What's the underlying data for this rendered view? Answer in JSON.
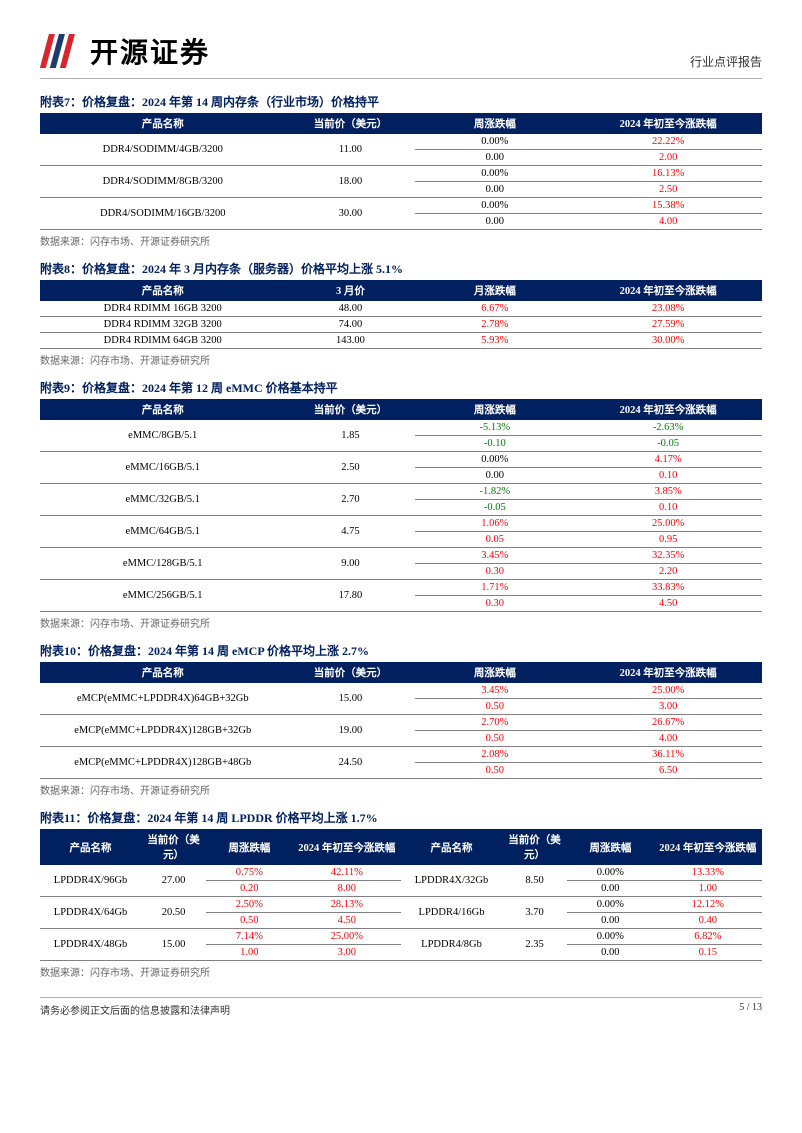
{
  "header": {
    "company": "开源证券",
    "report_type": "行业点评报告"
  },
  "tables": {
    "t7": {
      "title": "附表7：价格复盘：2024 年第 14 周内存条（行业市场）价格持平",
      "headers": [
        "产品名称",
        "当前价（美元）",
        "周涨跌幅",
        "2024 年初至今涨跌幅"
      ],
      "rows": [
        {
          "p": "DDR4/SODIMM/4GB/3200",
          "price": "11.00",
          "w1": "0.00%",
          "w1c": "black",
          "w2": "0.00",
          "w2c": "black",
          "y1": "22.22%",
          "y1c": "red",
          "y2": "2.00",
          "y2c": "red"
        },
        {
          "p": "DDR4/SODIMM/8GB/3200",
          "price": "18.00",
          "w1": "0.00%",
          "w1c": "black",
          "w2": "0.00",
          "w2c": "black",
          "y1": "16.13%",
          "y1c": "red",
          "y2": "2.50",
          "y2c": "red"
        },
        {
          "p": "DDR4/SODIMM/16GB/3200",
          "price": "30.00",
          "w1": "0.00%",
          "w1c": "black",
          "w2": "0.00",
          "w2c": "black",
          "y1": "15.38%",
          "y1c": "red",
          "y2": "4.00",
          "y2c": "red"
        }
      ]
    },
    "t8": {
      "title": "附表8：价格复盘：2024 年 3 月内存条（服务器）价格平均上涨 5.1%",
      "headers": [
        "产品名称",
        "3 月价",
        "月涨跌幅",
        "2024 年初至今涨跌幅"
      ],
      "rows": [
        {
          "p": "DDR4 RDIMM 16GB 3200",
          "price": "48.00",
          "m": "6.67%",
          "mc": "red",
          "y": "23.08%",
          "yc": "red"
        },
        {
          "p": "DDR4 RDIMM 32GB 3200",
          "price": "74.00",
          "m": "2.78%",
          "mc": "red",
          "y": "27.59%",
          "yc": "red"
        },
        {
          "p": "DDR4 RDIMM 64GB 3200",
          "price": "143.00",
          "m": "5.93%",
          "mc": "red",
          "y": "30.00%",
          "yc": "red"
        }
      ]
    },
    "t9": {
      "title": "附表9：价格复盘：2024 年第 12 周 eMMC 价格基本持平",
      "headers": [
        "产品名称",
        "当前价（美元）",
        "周涨跌幅",
        "2024 年初至今涨跌幅"
      ],
      "rows": [
        {
          "p": "eMMC/8GB/5.1",
          "price": "1.85",
          "w1": "-5.13%",
          "w1c": "green",
          "w2": "-0.10",
          "w2c": "green",
          "y1": "-2.63%",
          "y1c": "green",
          "y2": "-0.05",
          "y2c": "green"
        },
        {
          "p": "eMMC/16GB/5.1",
          "price": "2.50",
          "w1": "0.00%",
          "w1c": "black",
          "w2": "0.00",
          "w2c": "black",
          "y1": "4.17%",
          "y1c": "red",
          "y2": "0.10",
          "y2c": "red"
        },
        {
          "p": "eMMC/32GB/5.1",
          "price": "2.70",
          "w1": "-1.82%",
          "w1c": "green",
          "w2": "-0.05",
          "w2c": "green",
          "y1": "3.85%",
          "y1c": "red",
          "y2": "0.10",
          "y2c": "red"
        },
        {
          "p": "eMMC/64GB/5.1",
          "price": "4.75",
          "w1": "1.06%",
          "w1c": "red",
          "w2": "0.05",
          "w2c": "red",
          "y1": "25.00%",
          "y1c": "red",
          "y2": "0.95",
          "y2c": "red"
        },
        {
          "p": "eMMC/128GB/5.1",
          "price": "9.00",
          "w1": "3.45%",
          "w1c": "red",
          "w2": "0.30",
          "w2c": "red",
          "y1": "32.35%",
          "y1c": "red",
          "y2": "2.20",
          "y2c": "red"
        },
        {
          "p": "eMMC/256GB/5.1",
          "price": "17.80",
          "w1": "1.71%",
          "w1c": "red",
          "w2": "0.30",
          "w2c": "red",
          "y1": "33.83%",
          "y1c": "red",
          "y2": "4.50",
          "y2c": "red"
        }
      ]
    },
    "t10": {
      "title": "附表10：价格复盘：2024 年第 14 周 eMCP 价格平均上涨 2.7%",
      "headers": [
        "产品名称",
        "当前价（美元）",
        "周涨跌幅",
        "2024 年初至今涨跌幅"
      ],
      "rows": [
        {
          "p": "eMCP(eMMC+LPDDR4X)64GB+32Gb",
          "price": "15.00",
          "w1": "3.45%",
          "w1c": "red",
          "w2": "0.50",
          "w2c": "red",
          "y1": "25.00%",
          "y1c": "red",
          "y2": "3.00",
          "y2c": "red"
        },
        {
          "p": "eMCP(eMMC+LPDDR4X)128GB+32Gb",
          "price": "19.00",
          "w1": "2.70%",
          "w1c": "red",
          "w2": "0.50",
          "w2c": "red",
          "y1": "26.67%",
          "y1c": "red",
          "y2": "4.00",
          "y2c": "red"
        },
        {
          "p": "eMCP(eMMC+LPDDR4X)128GB+48Gb",
          "price": "24.50",
          "w1": "2.08%",
          "w1c": "red",
          "w2": "0.50",
          "w2c": "red",
          "y1": "36.11%",
          "y1c": "red",
          "y2": "6.50",
          "y2c": "red"
        }
      ]
    },
    "t11": {
      "title": "附表11：价格复盘：2024 年第 14 周 LPDDR 价格平均上涨 1.7%",
      "headers": [
        "产品名称",
        "当前价（美元）",
        "周涨跌幅",
        "2024 年初至今涨跌幅",
        "产品名称",
        "当前价（美元）",
        "周涨跌幅",
        "2024 年初至今涨跌幅"
      ],
      "rows": [
        {
          "p1": "LPDDR4X/96Gb",
          "pr1": "27.00",
          "w1a": "0.75%",
          "w1ac": "red",
          "w1b": "0.20",
          "w1bc": "red",
          "y1a": "42.11%",
          "y1ac": "red",
          "y1b": "8.00",
          "y1bc": "red",
          "p2": "LPDDR4X/32Gb",
          "pr2": "8.50",
          "w2a": "0.00%",
          "w2ac": "black",
          "w2b": "0.00",
          "w2bc": "black",
          "y2a": "13.33%",
          "y2ac": "red",
          "y2b": "1.00",
          "y2bc": "red"
        },
        {
          "p1": "LPDDR4X/64Gb",
          "pr1": "20.50",
          "w1a": "2.50%",
          "w1ac": "red",
          "w1b": "0.50",
          "w1bc": "red",
          "y1a": "28.13%",
          "y1ac": "red",
          "y1b": "4.50",
          "y1bc": "red",
          "p2": "LPDDR4/16Gb",
          "pr2": "3.70",
          "w2a": "0.00%",
          "w2ac": "black",
          "w2b": "0.00",
          "w2bc": "black",
          "y2a": "12.12%",
          "y2ac": "red",
          "y2b": "0.40",
          "y2bc": "red"
        },
        {
          "p1": "LPDDR4X/48Gb",
          "pr1": "15.00",
          "w1a": "7.14%",
          "w1ac": "red",
          "w1b": "1.00",
          "w1bc": "red",
          "y1a": "25.00%",
          "y1ac": "red",
          "y1b": "3.00",
          "y1bc": "red",
          "p2": "LPDDR4/8Gb",
          "pr2": "2.35",
          "w2a": "0.00%",
          "w2ac": "black",
          "w2b": "0.00",
          "w2bc": "black",
          "y2a": "6.82%",
          "y2ac": "red",
          "y2b": "0.15",
          "y2bc": "red"
        }
      ]
    }
  },
  "source": "数据来源：闪存市场、开源证券研究所",
  "footer": {
    "disclaimer": "请务必参阅正文后面的信息披露和法律声明",
    "page": "5 / 13"
  }
}
